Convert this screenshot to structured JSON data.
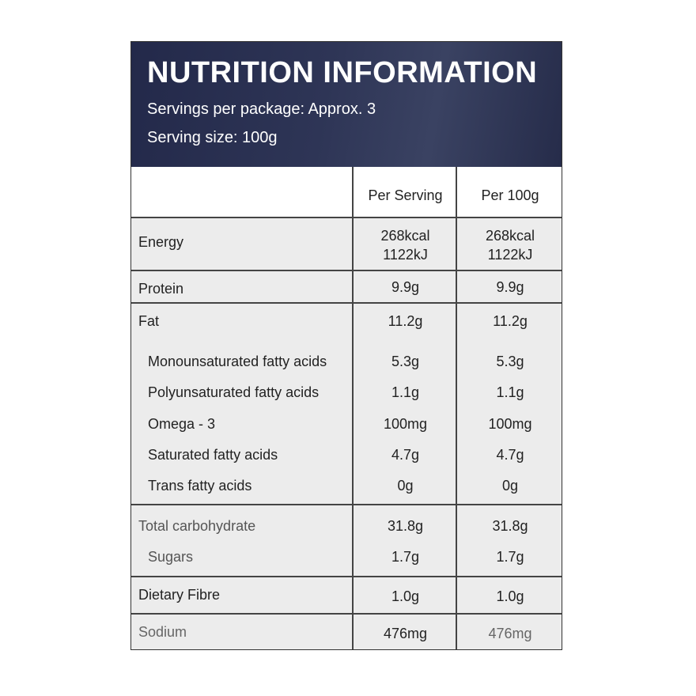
{
  "header": {
    "title": "NUTRITION INFORMATION",
    "servings_per_package": "Servings per package: Approx. 3",
    "serving_size": "Serving size: 100g"
  },
  "columns": [
    "Per Serving",
    "Per 100g"
  ],
  "rows": {
    "energy": {
      "name": "Energy",
      "per_serving": [
        "268kcal",
        "1122kJ"
      ],
      "per_100g": [
        "268kcal",
        "1122kJ"
      ]
    },
    "protein": {
      "name": "Protein",
      "per_serving": "9.9g",
      "per_100g": "9.9g"
    },
    "fat": {
      "name": "Fat",
      "per_serving": "11.2g",
      "per_100g": "11.2g"
    },
    "mono": {
      "name": "Monounsaturated fatty acids",
      "per_serving": "5.3g",
      "per_100g": "5.3g"
    },
    "poly": {
      "name": "Polyunsaturated fatty acids",
      "per_serving": "1.1g",
      "per_100g": "1.1g"
    },
    "omega": {
      "name": "Omega - 3",
      "per_serving": "100mg",
      "per_100g": "100mg"
    },
    "sat": {
      "name": "Saturated fatty acids",
      "per_serving": "4.7g",
      "per_100g": "4.7g"
    },
    "trans": {
      "name": "Trans fatty acids",
      "per_serving": "0g",
      "per_100g": "0g"
    },
    "carb": {
      "name": "Total carbohydrate",
      "per_serving": "31.8g",
      "per_100g": "31.8g"
    },
    "sugars": {
      "name": "Sugars",
      "per_serving": "1.7g",
      "per_100g": "1.7g"
    },
    "fibre": {
      "name": "Dietary Fibre",
      "per_serving": "1.0g",
      "per_100g": "1.0g"
    },
    "sodium": {
      "name": "Sodium",
      "per_serving": "476mg",
      "per_100g": "476mg"
    }
  },
  "colors": {
    "header_bg": "#2b3253",
    "cell_bg": "#ececec"
  }
}
